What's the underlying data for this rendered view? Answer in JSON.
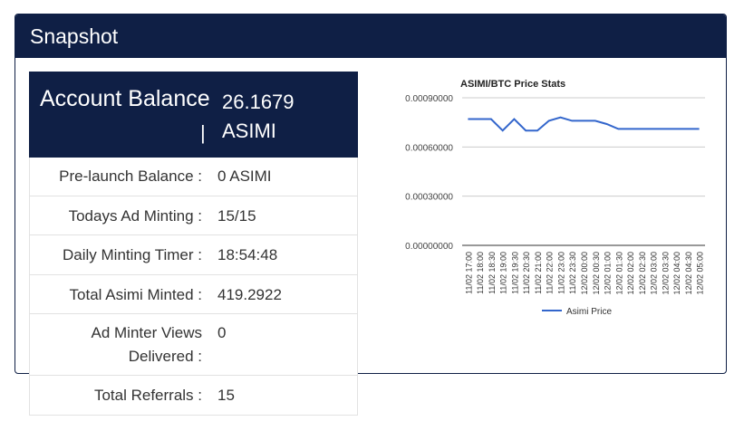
{
  "header": {
    "title": "Snapshot"
  },
  "balance": {
    "label": "Account Balance",
    "separator": "|",
    "value": "26.1679 ASIMI"
  },
  "rows": [
    {
      "label": "Pre-launch Balance :",
      "value": "0 ASIMI"
    },
    {
      "label": "Todays Ad Minting :",
      "value": "15/15"
    },
    {
      "label": "Daily Minting Timer :",
      "value": "18:54:48"
    },
    {
      "label": "Total Asimi Minted :",
      "value": "419.2922"
    },
    {
      "label": "Ad Minter Views Delivered :",
      "value": "0"
    },
    {
      "label": "Total Referrals :",
      "value": "15"
    }
  ],
  "chart_data": {
    "type": "line",
    "title": "ASIMI/BTC Price Stats",
    "xlabel": "",
    "ylabel": "",
    "categories": [
      "11/02 17:00",
      "11/02 18:00",
      "11/02 18:30",
      "11/02 19:00",
      "11/02 19:30",
      "11/02 20:30",
      "11/02 21:00",
      "11/02 22:00",
      "11/02 23:00",
      "11/02 23:30",
      "12/02 00:00",
      "12/02 00:30",
      "12/02 01:00",
      "12/02 01:30",
      "12/02 02:00",
      "12/02 02:30",
      "12/02 03:00",
      "12/02 03:30",
      "12/02 04:00",
      "12/02 04:30",
      "12/02 05:00"
    ],
    "series": [
      {
        "name": "Asimi Price",
        "values": [
          0.00077,
          0.00077,
          0.00077,
          0.0007,
          0.00077,
          0.0007,
          0.0007,
          0.00076,
          0.00078,
          0.00076,
          0.00076,
          0.00076,
          0.00074,
          0.00071,
          0.00071,
          0.00071,
          0.00071,
          0.00071,
          0.00071,
          0.00071,
          0.00071
        ]
      }
    ],
    "yticks": [
      "0.00000000",
      "0.00030000",
      "0.00060000",
      "0.00090000"
    ],
    "ylim": [
      0,
      0.0009
    ],
    "grid": true,
    "legend": "bottom",
    "color": "#3366cc"
  }
}
